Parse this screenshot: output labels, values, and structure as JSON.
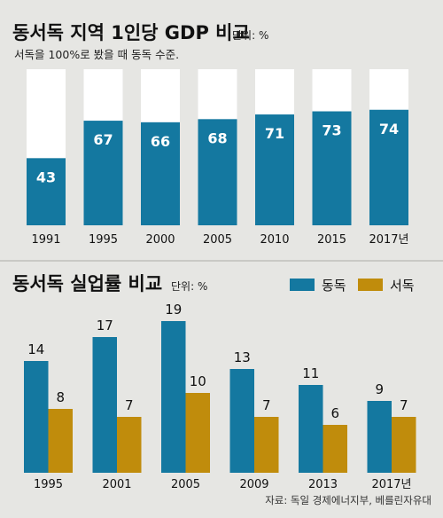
{
  "chart_data": [
    {
      "type": "bar",
      "title": "동서독 지역 1인당 GDP 비교",
      "unit": "단위: %",
      "subtitle": "서독을 100%로 봤을 때 동독 수준.",
      "categories": [
        "1991",
        "1995",
        "2000",
        "2005",
        "2010",
        "2015",
        "2017년"
      ],
      "series": [
        {
          "values": [
            43,
            67,
            66,
            68,
            71,
            73,
            74
          ]
        }
      ],
      "ylim": [
        0,
        100
      ],
      "colors": {
        "bar": "#1478a0",
        "base": "#ffffff"
      },
      "grid": false
    },
    {
      "type": "bar",
      "title": "동서독 실업률 비교",
      "unit": "단위: %",
      "categories": [
        "1995",
        "2001",
        "2005",
        "2009",
        "2013",
        "2017년"
      ],
      "series": [
        {
          "name": "동독",
          "color": "#1478a0",
          "values": [
            14,
            17,
            19,
            13,
            11,
            9
          ]
        },
        {
          "name": "서독",
          "color": "#c08c0c",
          "values": [
            8,
            7,
            10,
            7,
            6,
            7
          ]
        }
      ],
      "legend": "top-right",
      "grid": false
    }
  ],
  "source": "자료: 독일 경제에너지부, 베를린자유대"
}
